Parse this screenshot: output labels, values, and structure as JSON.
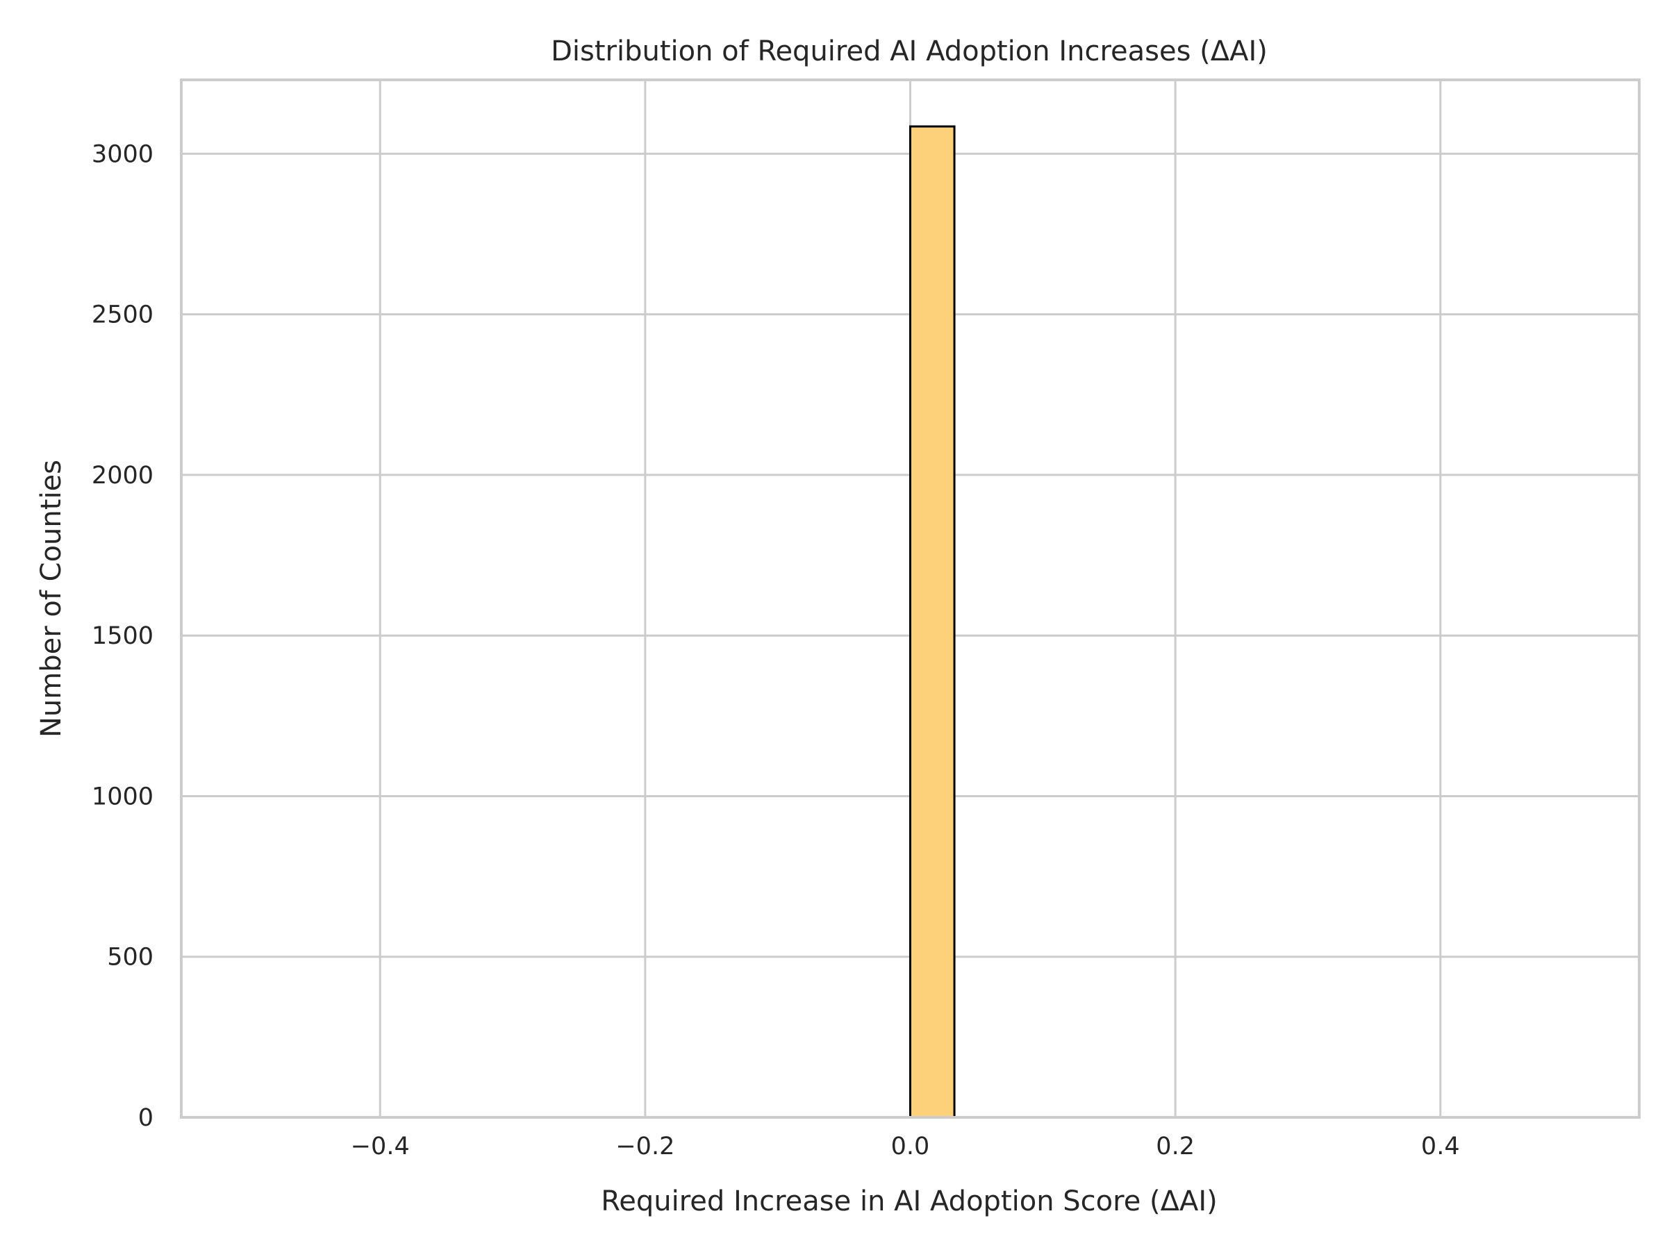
{
  "chart_data": {
    "type": "bar",
    "title": "Distribution of Required AI Adoption Increases (ΔAI)",
    "xlabel": "Required Increase in AI Adoption Score (ΔAI)",
    "ylabel": "Number of Counties",
    "xlim": [
      -0.55,
      0.55
    ],
    "ylim": [
      0,
      3230
    ],
    "xticks": [
      -0.4,
      -0.2,
      0.0,
      0.2,
      0.4
    ],
    "xtick_labels": [
      "−0.4",
      "−0.2",
      "0.0",
      "0.2",
      "0.4"
    ],
    "yticks": [
      0,
      500,
      1000,
      1500,
      2000,
      2500,
      3000
    ],
    "ytick_labels": [
      "0",
      "500",
      "1000",
      "1500",
      "2000",
      "2500",
      "3000"
    ],
    "grid": true,
    "bars": [
      {
        "x_start": 0.0,
        "x_end": 0.0333,
        "count": 3085
      }
    ],
    "colors": {
      "bar_fill": "#fdd17a",
      "bar_edge": "#000000",
      "grid": "#cccccc",
      "spine": "#cccccc",
      "text": "#262626"
    }
  }
}
